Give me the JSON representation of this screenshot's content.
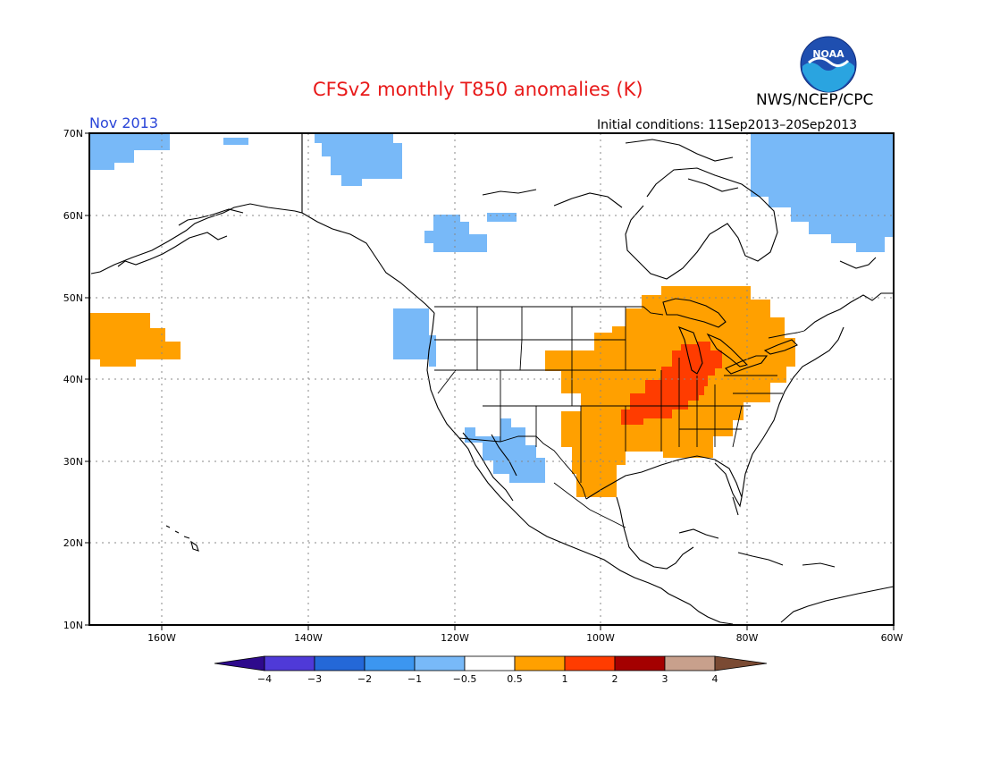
{
  "title": "CFSv2 monthly T850 anomalies (K)",
  "agency": "NWS/NCEP/CPC",
  "logo_text": "NOAA",
  "valid_month": "Nov 2013",
  "initial_conditions": "Initial conditions: 11Sep2013–20Sep2013",
  "axes": {
    "lon_labels": [
      "160W",
      "140W",
      "120W",
      "100W",
      "80W",
      "60W"
    ],
    "lat_labels": [
      "70N",
      "60N",
      "50N",
      "40N",
      "30N",
      "20N",
      "10N"
    ]
  },
  "colorbar": {
    "ticks": [
      "−4",
      "−3",
      "−2",
      "−1",
      "−0.5",
      "0.5",
      "1",
      "2",
      "3",
      "4"
    ],
    "colors": [
      "#2e0a8c",
      "#4f3ad8",
      "#2468d8",
      "#3c96f0",
      "#78b9f8",
      "#ffffff",
      "#ffa000",
      "#ff3c00",
      "#a40000",
      "#c8a08c",
      "#7a4a33"
    ]
  },
  "regions": [
    {
      "name": "warm-anomaly-midwest",
      "category": "1 to 2"
    },
    {
      "name": "mild-warm-anomaly-central-us",
      "category": "0.5 to 1"
    },
    {
      "name": "mild-warm-anomaly-pacific",
      "category": "0.5 to 1"
    },
    {
      "name": "mild-cool-anomaly-southwest",
      "category": "-1 to -0.5"
    },
    {
      "name": "mild-cool-anomaly-pacific-northwest",
      "category": "-1 to -0.5"
    },
    {
      "name": "mild-cool-anomaly-canada",
      "category": "-1 to -0.5"
    },
    {
      "name": "mild-cool-anomaly-labrador",
      "category": "-1 to -0.5"
    },
    {
      "name": "mild-cool-anomaly-arctic",
      "category": "-1 to -0.5"
    }
  ]
}
